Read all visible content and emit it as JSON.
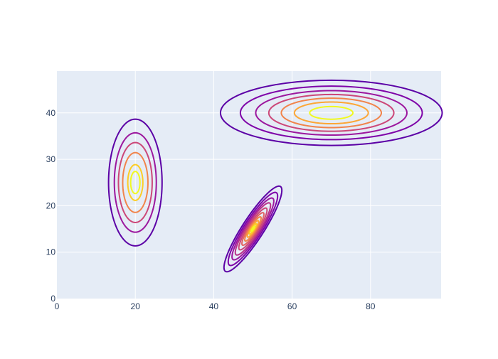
{
  "chart_data": {
    "type": "contour",
    "xlim": [
      0,
      98
    ],
    "ylim": [
      0,
      49
    ],
    "x_ticks": [
      0,
      20,
      40,
      60,
      80
    ],
    "y_ticks": [
      0,
      10,
      20,
      30,
      40
    ],
    "grid": true,
    "legend": "none",
    "colors": {
      "plot_background": "#e5ecf6",
      "grid": "#ffffff",
      "tick_text": "#2a3f5f"
    },
    "contour_colors": [
      "#5c01a6",
      "#7e03a8",
      "#9c179e",
      "#b83289",
      "#cc4778",
      "#e16462",
      "#f1844b",
      "#fca636",
      "#fccd25",
      "#f0f921"
    ],
    "peaks": [
      {
        "center": [
          20,
          25
        ],
        "sigma": [
          3.5,
          7
        ],
        "correlation": 0,
        "levels": [
          {
            "radius": 1.95,
            "color": "#5c01a6"
          },
          {
            "radius": 1.53,
            "color": "#9c179e"
          },
          {
            "radius": 1.23,
            "color": "#cc4778"
          },
          {
            "radius": 0.92,
            "color": "#f1844b"
          },
          {
            "radius": 0.55,
            "color": "#fccd25"
          },
          {
            "radius": 0.34,
            "color": "#f0f921"
          }
        ]
      },
      {
        "center": [
          70,
          40
        ],
        "sigma": [
          14.5,
          3.6
        ],
        "correlation": 0,
        "levels": [
          {
            "radius": 1.95,
            "color": "#5c01a6"
          },
          {
            "radius": 1.6,
            "color": "#7e03a8"
          },
          {
            "radius": 1.33,
            "color": "#9c179e"
          },
          {
            "radius": 1.1,
            "color": "#cc4778"
          },
          {
            "radius": 0.88,
            "color": "#f1844b"
          },
          {
            "radius": 0.65,
            "color": "#fca636"
          },
          {
            "radius": 0.38,
            "color": "#f0f921"
          }
        ]
      },
      {
        "center": [
          50,
          15
        ],
        "sigma": [
          3.6,
          4.5
        ],
        "correlation": 0.9,
        "levels": [
          {
            "radius": 2.05,
            "color": "#5c01a6"
          },
          {
            "radius": 1.75,
            "color": "#7e03a8"
          },
          {
            "radius": 1.48,
            "color": "#9c179e"
          },
          {
            "radius": 1.25,
            "color": "#b83289"
          },
          {
            "radius": 1.0,
            "color": "#cc4778"
          },
          {
            "radius": 0.78,
            "color": "#e16462"
          },
          {
            "radius": 0.58,
            "color": "#f1844b"
          },
          {
            "radius": 0.4,
            "color": "#fca636"
          },
          {
            "radius": 0.25,
            "color": "#fccd25"
          },
          {
            "radius": 0.12,
            "color": "#f0f921"
          }
        ]
      }
    ]
  }
}
